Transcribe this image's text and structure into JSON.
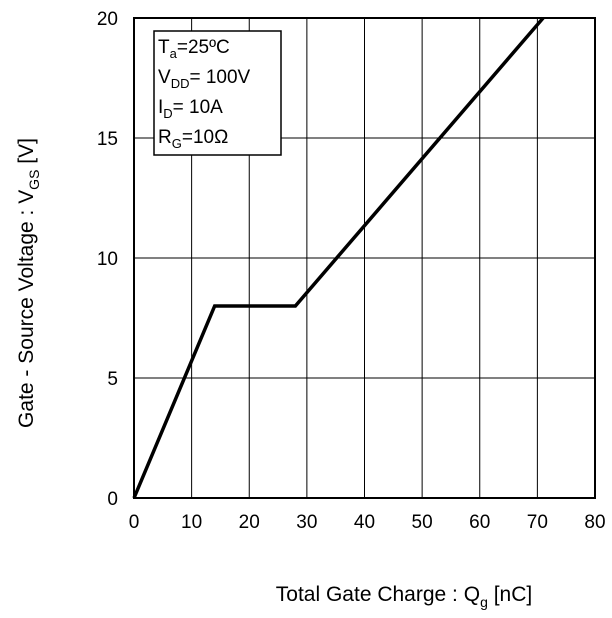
{
  "chart_data": {
    "type": "line",
    "xlabel": {
      "main": "Total Gate Charge : Q",
      "sub": "g",
      "unit": " [nC]"
    },
    "ylabel": {
      "main": "Gate - Source Voltage : V",
      "sub": "GS",
      "unit": " [V]"
    },
    "xlim": [
      0,
      80
    ],
    "ylim": [
      0,
      20
    ],
    "xticks": [
      0,
      10,
      20,
      30,
      40,
      50,
      60,
      70,
      80
    ],
    "yticks": [
      0,
      5,
      10,
      15,
      20
    ],
    "grid": true,
    "series": [
      {
        "x": [
          0,
          14,
          28,
          71
        ],
        "y": [
          0,
          8,
          8,
          20
        ]
      }
    ],
    "conditions": [
      {
        "main": "T",
        "sub": "a",
        "rest": "=25ºC"
      },
      {
        "main": "V",
        "sub": "DD",
        "rest": "= 100V"
      },
      {
        "main": "I",
        "sub": "D",
        "rest": "= 10A"
      },
      {
        "main": "R",
        "sub": "G",
        "rest": "=10Ω"
      }
    ],
    "colors": {
      "line": "#000000",
      "grid": "#000000",
      "frame": "#000000"
    }
  }
}
